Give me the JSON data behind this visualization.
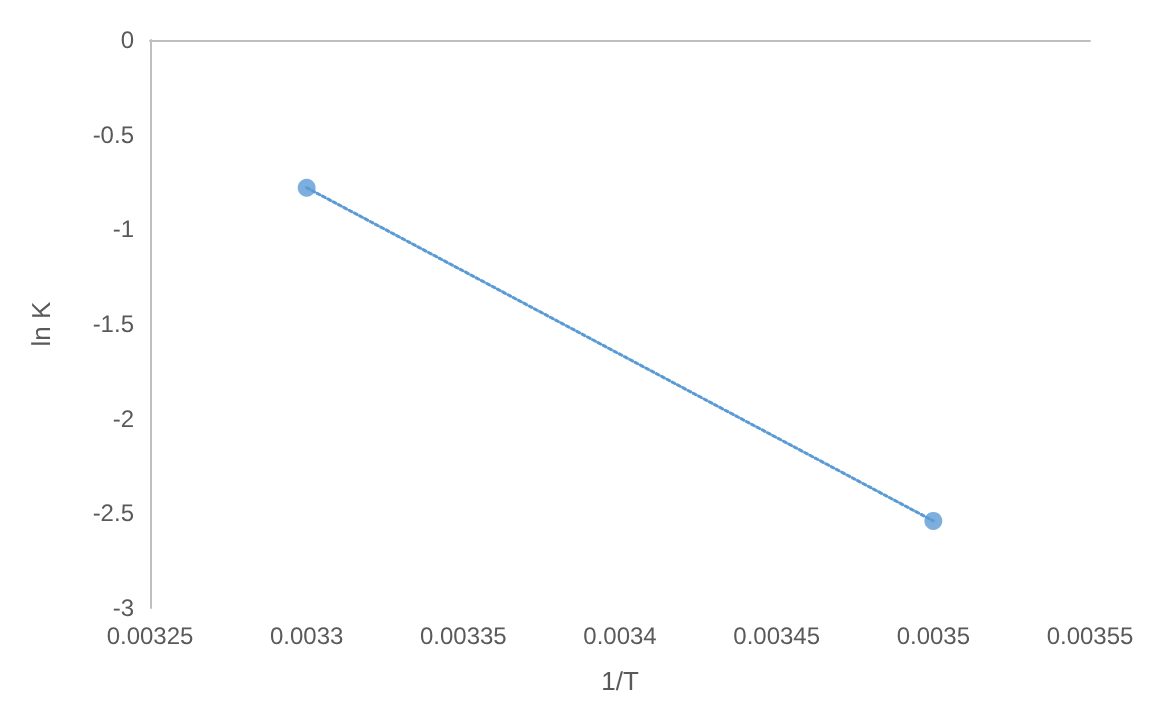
{
  "chart_data": {
    "type": "scatter",
    "xlabel": "1/T",
    "ylabel": "ln K",
    "x": [
      0.0033,
      0.0035
    ],
    "series": [
      {
        "color": "#5b9bd5",
        "values": [
          -0.78,
          -2.54
        ],
        "marker": "circle"
      },
      {
        "type": "line",
        "color": "#5b9bd5",
        "x": [
          0.0033,
          0.0035
        ],
        "values": [
          -0.78,
          -2.54
        ],
        "marker": "none",
        "line_style": "dotted"
      }
    ],
    "xlim": [
      0.00325,
      0.00355
    ],
    "xticks": [
      0.00325,
      0.0033,
      0.00335,
      0.0034,
      0.00345,
      0.0035,
      0.00355
    ],
    "ylim": [
      -3,
      0
    ],
    "yticks": [
      0,
      -0.5,
      -1,
      -1.5,
      -2,
      -2.5,
      -3
    ],
    "grid": false
  }
}
